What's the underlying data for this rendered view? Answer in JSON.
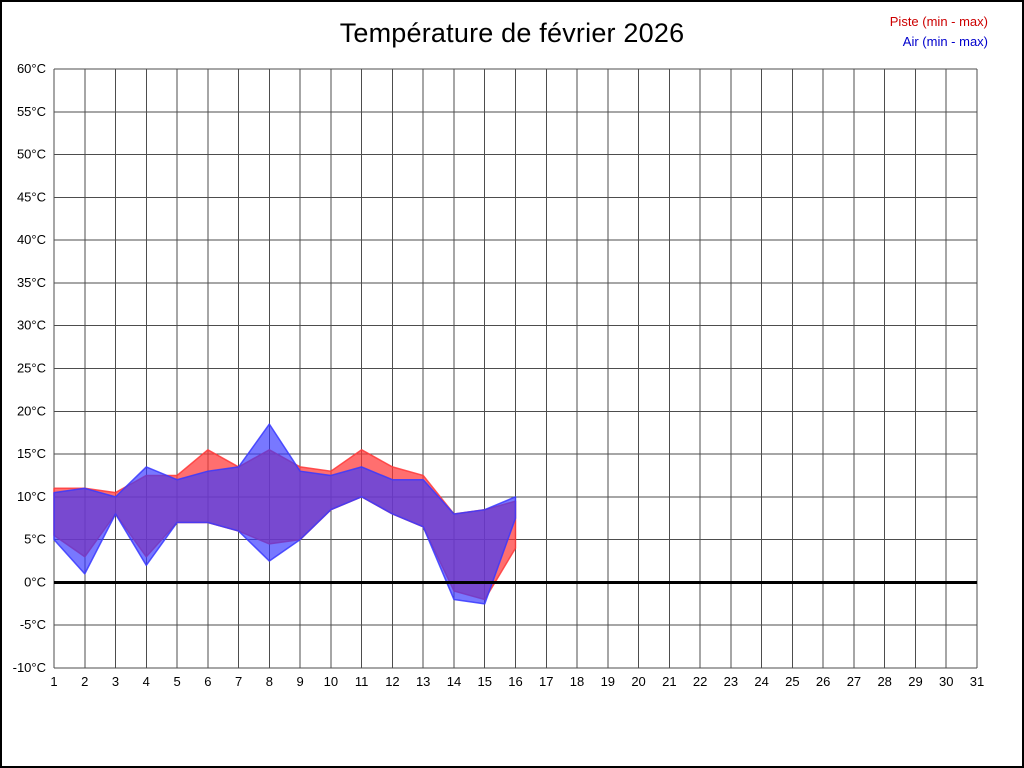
{
  "header": {
    "title": "Température de février 2026"
  },
  "legend": {
    "piste_label": "Piste (min - max)",
    "air_label": "Air (min - max)",
    "piste_color": "#cc0000",
    "air_color": "#0000cc"
  },
  "chart_data": {
    "type": "area",
    "title": "Température de février 2026",
    "xlabel": "",
    "ylabel": "",
    "x": [
      1,
      2,
      3,
      4,
      5,
      6,
      7,
      8,
      9,
      10,
      11,
      12,
      13,
      14,
      15,
      16
    ],
    "x_axis_ticks": [
      1,
      2,
      3,
      4,
      5,
      6,
      7,
      8,
      9,
      10,
      11,
      12,
      13,
      14,
      15,
      16,
      17,
      18,
      19,
      20,
      21,
      22,
      23,
      24,
      25,
      26,
      27,
      28,
      29,
      30,
      31
    ],
    "ylim": [
      -10,
      60
    ],
    "y_tick_step": 5,
    "y_ticks": [
      "60°C",
      "55°C",
      "50°C",
      "45°C",
      "40°C",
      "35°C",
      "30°C",
      "25°C",
      "20°C",
      "15°C",
      "10°C",
      "5°C",
      "0°C",
      "-5°C",
      "-10°C"
    ],
    "zero_line": 0,
    "grid": true,
    "legend_position": "top-right",
    "series": [
      {
        "name": "Piste (min - max)",
        "color": "#ff3838",
        "opacity": 0.72,
        "max": [
          11,
          11,
          10.5,
          12.5,
          12.5,
          15.5,
          13.5,
          15.5,
          13.5,
          13,
          15.5,
          13.5,
          12.5,
          8,
          8.5,
          9.5
        ],
        "min": [
          5.5,
          3,
          8,
          3,
          7,
          7,
          6,
          4.5,
          5,
          8.5,
          10,
          8,
          6.5,
          -1,
          -2,
          4
        ]
      },
      {
        "name": "Air (min - max)",
        "color": "#3838ff",
        "opacity": 0.68,
        "max": [
          10.5,
          11,
          10,
          13.5,
          12,
          13,
          13.5,
          18.5,
          13,
          12.5,
          13.5,
          12,
          12,
          8,
          8.5,
          10
        ],
        "min": [
          5,
          1,
          8,
          2,
          7,
          7,
          6,
          2.5,
          5,
          8.5,
          10,
          8,
          6.5,
          -2,
          -2.5,
          7.5
        ]
      }
    ]
  }
}
